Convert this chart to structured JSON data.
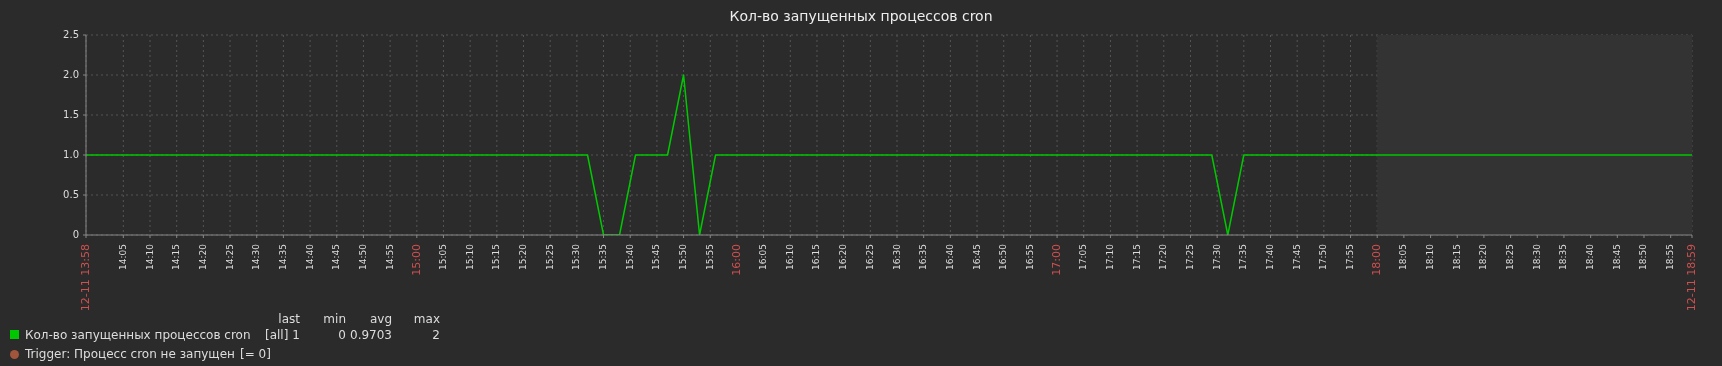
{
  "chart_data": {
    "type": "line",
    "title": "Кол-во запущенных процессов cron",
    "x": [
      13.9667,
      15.5333,
      15.5833,
      15.6333,
      15.6833,
      15.7833,
      15.8333,
      15.8833,
      15.9333,
      17.4833,
      17.5333,
      17.5833,
      18.9833
    ],
    "series": [
      {
        "name": "Кол-во запущенных процессов cron",
        "color": "#00c800",
        "values": [
          1,
          1,
          0,
          0,
          1,
          1,
          2,
          0,
          1,
          1,
          0,
          1,
          1
        ]
      }
    ],
    "xlim": [
      13.9667,
      18.9833
    ],
    "xticks": [
      {
        "value": 13.9667,
        "label": "12-11 13:58"
      },
      {
        "value": 14.0833,
        "label": "14:05"
      },
      {
        "value": 14.1667,
        "label": "14:10"
      },
      {
        "value": 14.25,
        "label": "14:15"
      },
      {
        "value": 14.3333,
        "label": "14:20"
      },
      {
        "value": 14.4167,
        "label": "14:25"
      },
      {
        "value": 14.5,
        "label": "14:30"
      },
      {
        "value": 14.5833,
        "label": "14:35"
      },
      {
        "value": 14.6667,
        "label": "14:40"
      },
      {
        "value": 14.75,
        "label": "14:45"
      },
      {
        "value": 14.8333,
        "label": "14:50"
      },
      {
        "value": 14.9167,
        "label": "14:55"
      },
      {
        "value": 15,
        "label": "15:00"
      },
      {
        "value": 15.0833,
        "label": "15:05"
      },
      {
        "value": 15.1667,
        "label": "15:10"
      },
      {
        "value": 15.25,
        "label": "15:15"
      },
      {
        "value": 15.3333,
        "label": "15:20"
      },
      {
        "value": 15.4167,
        "label": "15:25"
      },
      {
        "value": 15.5,
        "label": "15:30"
      },
      {
        "value": 15.5833,
        "label": "15:35"
      },
      {
        "value": 15.6667,
        "label": "15:40"
      },
      {
        "value": 15.75,
        "label": "15:45"
      },
      {
        "value": 15.8333,
        "label": "15:50"
      },
      {
        "value": 15.9167,
        "label": "15:55"
      },
      {
        "value": 16,
        "label": "16:00"
      },
      {
        "value": 16.0833,
        "label": "16:05"
      },
      {
        "value": 16.1667,
        "label": "16:10"
      },
      {
        "value": 16.25,
        "label": "16:15"
      },
      {
        "value": 16.3333,
        "label": "16:20"
      },
      {
        "value": 16.4167,
        "label": "16:25"
      },
      {
        "value": 16.5,
        "label": "16:30"
      },
      {
        "value": 16.5833,
        "label": "16:35"
      },
      {
        "value": 16.6667,
        "label": "16:40"
      },
      {
        "value": 16.75,
        "label": "16:45"
      },
      {
        "value": 16.8333,
        "label": "16:50"
      },
      {
        "value": 16.9167,
        "label": "16:55"
      },
      {
        "value": 17,
        "label": "17:00"
      },
      {
        "value": 17.0833,
        "label": "17:05"
      },
      {
        "value": 17.1667,
        "label": "17:10"
      },
      {
        "value": 17.25,
        "label": "17:15"
      },
      {
        "value": 17.3333,
        "label": "17:20"
      },
      {
        "value": 17.4167,
        "label": "17:25"
      },
      {
        "value": 17.5,
        "label": "17:30"
      },
      {
        "value": 17.5833,
        "label": "17:35"
      },
      {
        "value": 17.6667,
        "label": "17:40"
      },
      {
        "value": 17.75,
        "label": "17:45"
      },
      {
        "value": 17.8333,
        "label": "17:50"
      },
      {
        "value": 17.9167,
        "label": "17:55"
      },
      {
        "value": 18,
        "label": "18:00"
      },
      {
        "value": 18.0833,
        "label": "18:05"
      },
      {
        "value": 18.1667,
        "label": "18:10"
      },
      {
        "value": 18.25,
        "label": "18:15"
      },
      {
        "value": 18.3333,
        "label": "18:20"
      },
      {
        "value": 18.4167,
        "label": "18:25"
      },
      {
        "value": 18.5,
        "label": "18:30"
      },
      {
        "value": 18.5833,
        "label": "18:35"
      },
      {
        "value": 18.6667,
        "label": "18:40"
      },
      {
        "value": 18.75,
        "label": "18:45"
      },
      {
        "value": 18.8333,
        "label": "18:50"
      },
      {
        "value": 18.9167,
        "label": "18:55"
      },
      {
        "value": 18.9833,
        "label": "12-11 18:59"
      }
    ],
    "ylim": [
      0,
      2.5
    ],
    "yticks": [
      0,
      0.5,
      {
        "value": 1,
        "label": "1.0"
      },
      1.5,
      {
        "value": 2,
        "label": "2.0"
      },
      2.5
    ],
    "grid": true,
    "marker": "none",
    "line_style": "solid",
    "legend": "bottom",
    "bands": [
      {
        "axis": "x",
        "from": 18,
        "to": 18.9833,
        "color": "#333333"
      }
    ],
    "annotations": [
      "last",
      "min",
      "avg",
      "max",
      "[all]",
      "1",
      "0",
      "0.9703",
      "2",
      "Trigger: Процесс cron не запущен",
      "[= 0]"
    ]
  }
}
